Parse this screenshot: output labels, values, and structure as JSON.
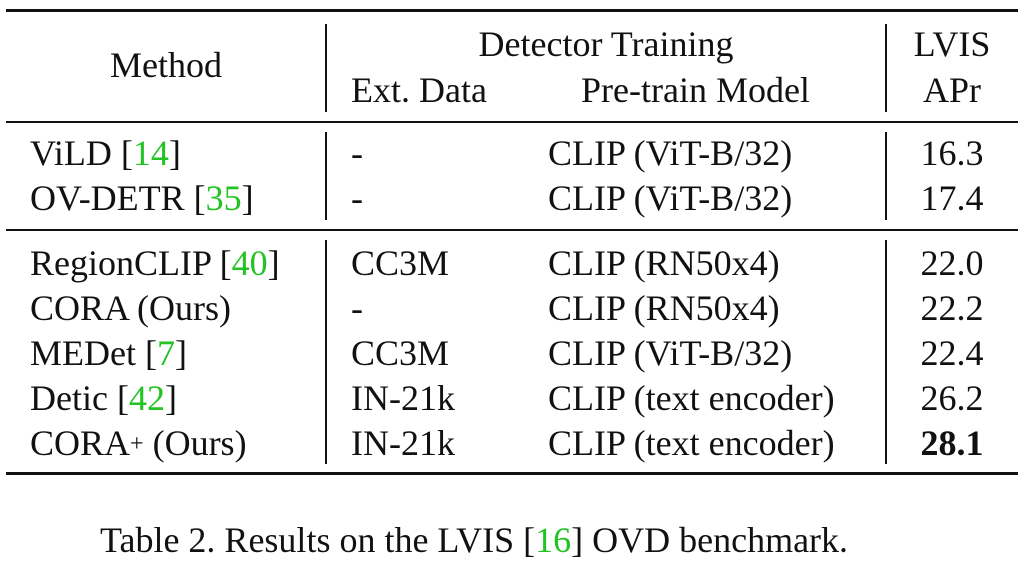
{
  "table": {
    "header": {
      "method": "Method",
      "detector_training": "Detector Training",
      "ext_data": "Ext. Data",
      "pretrain_model": "Pre-train Model",
      "lvis": "LVIS",
      "apr": "APr"
    },
    "group1": [
      {
        "method": "ViLD ",
        "cite": "14",
        "ext": "-",
        "model": "CLIP (ViT-B/32)",
        "apr": "16.3"
      },
      {
        "method": "OV-DETR ",
        "cite": "35",
        "ext": "-",
        "model": "CLIP (ViT-B/32)",
        "apr": "17.4"
      }
    ],
    "group2": [
      {
        "method": "RegionCLIP ",
        "cite": "40",
        "ext": "CC3M",
        "model": "CLIP (RN50x4)",
        "apr": "22.0"
      },
      {
        "method": "CORA (Ours)",
        "cite": "",
        "ext": "-",
        "model": "CLIP (RN50x4)",
        "apr": "22.2"
      },
      {
        "method": "MEDet ",
        "cite": "7",
        "ext": "CC3M",
        "model": "CLIP (ViT-B/32)",
        "apr": "22.4"
      },
      {
        "method": "Detic ",
        "cite": "42",
        "ext": "IN-21k",
        "model": "CLIP (text encoder)",
        "apr": "26.2"
      },
      {
        "method_main": "CORA",
        "method_sup": "+",
        "method_tail": " (Ours)",
        "ext": "IN-21k",
        "model": "CLIP (text encoder)",
        "apr": "28.1"
      }
    ]
  },
  "caption": {
    "prefix": "Table 2. Results on the LVIS ",
    "cite": "16",
    "suffix": " OVD benchmark."
  }
}
